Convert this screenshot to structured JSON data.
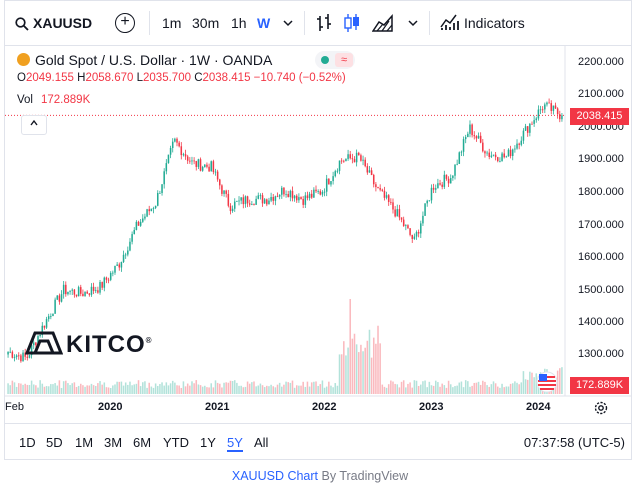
{
  "toolbar": {
    "symbol": "XAUUSD",
    "add": "+",
    "intervals": [
      "1m",
      "30m",
      "1h",
      "W"
    ],
    "active_interval": "W",
    "indicators_label": "Indicators"
  },
  "legend": {
    "title": "Gold Spot / U.S. Dollar · 1W · OANDA",
    "o_label": "O",
    "o": "2049.155",
    "h_label": "H",
    "h": "2058.670",
    "l_label": "L",
    "l": "2035.700",
    "c_label": "C",
    "c": "2038.415",
    "change": "−10.740 (−0.52%)",
    "vol_label": "Vol",
    "vol": "172.889K",
    "pill_symbol": "≈"
  },
  "price_axis": {
    "labels": [
      "2200.000",
      "2100.000",
      "2000.000",
      "1900.000",
      "1800.000",
      "1700.000",
      "1600.000",
      "1500.000",
      "1400.000",
      "1300.000"
    ],
    "last_price": "2038.415",
    "last_volume": "172.889K"
  },
  "time_axis": {
    "labels": [
      "Feb",
      "2020",
      "2021",
      "2022",
      "2023",
      "2024"
    ]
  },
  "watermark": {
    "text": "KITCO",
    "reg": "®"
  },
  "bottom": {
    "ranges": [
      "1D",
      "5D",
      "1M",
      "3M",
      "6M",
      "YTD",
      "1Y",
      "5Y",
      "All"
    ],
    "active_range": "5Y",
    "clock": "07:37:58 (UTC-5)"
  },
  "footer": {
    "link": "XAUUSD Chart",
    "by": "By TradingView"
  },
  "colors": {
    "up": "#22ab94",
    "down": "#f23645",
    "accent": "#2962ff"
  },
  "chart_data": {
    "type": "candlestick",
    "symbol": "XAUUSD",
    "interval": "1W",
    "y_range": [
      1250,
      2230
    ],
    "x": [
      "2019-02",
      "2019-04",
      "2019-06",
      "2019-08",
      "2019-10",
      "2019-12",
      "2020-02",
      "2020-04",
      "2020-06",
      "2020-08",
      "2020-10",
      "2020-12",
      "2021-02",
      "2021-04",
      "2021-06",
      "2021-08",
      "2021-10",
      "2021-12",
      "2022-02",
      "2022-04",
      "2022-06",
      "2022-08",
      "2022-10",
      "2022-12",
      "2023-02",
      "2023-04",
      "2023-06",
      "2023-08",
      "2023-10",
      "2023-12",
      "2024-01"
    ],
    "close": [
      1310,
      1290,
      1400,
      1500,
      1490,
      1510,
      1580,
      1700,
      1770,
      1960,
      1890,
      1880,
      1760,
      1780,
      1780,
      1810,
      1780,
      1805,
      1900,
      1910,
      1810,
      1740,
      1650,
      1820,
      1850,
      2000,
      1920,
      1910,
      1990,
      2070,
      2038
    ],
    "last_close": 2038.415,
    "volume_last": "172.889K"
  }
}
